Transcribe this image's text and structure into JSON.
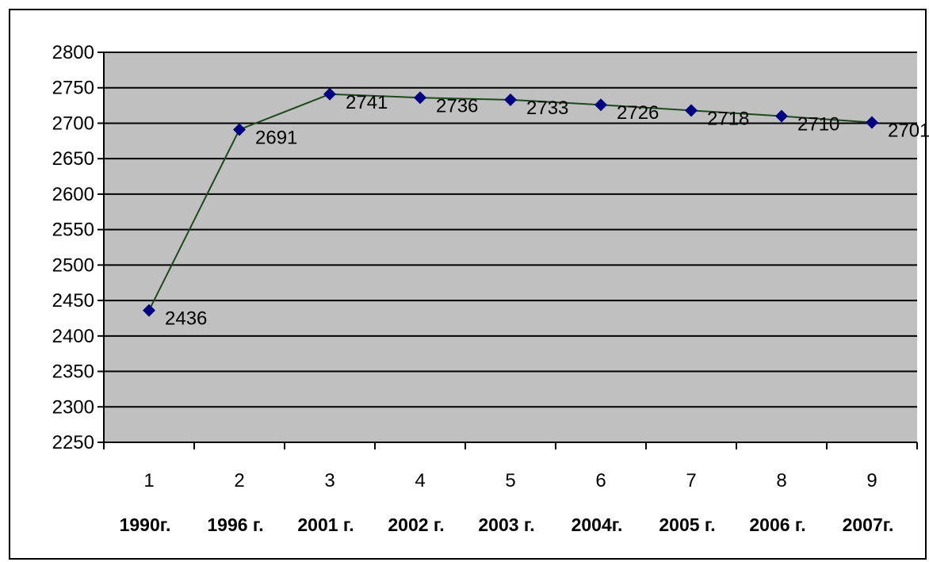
{
  "chart_data": {
    "type": "line",
    "categories": [
      "1",
      "2",
      "3",
      "4",
      "5",
      "6",
      "7",
      "8",
      "9"
    ],
    "year_labels": [
      "1990г.",
      "1996 г.",
      "2001 г.",
      "2002 г.",
      "2003 г.",
      "2004г.",
      "2005 г.",
      "2006 г.",
      "2007г."
    ],
    "series": [
      {
        "values": [
          2436,
          2691,
          2741,
          2736,
          2733,
          2726,
          2718,
          2710,
          2701
        ],
        "color": "#1c4a1c",
        "marker_color": "#000080"
      }
    ],
    "data_labels": [
      "2436",
      "2691",
      "2741",
      "2736",
      "2733",
      "2726",
      "2718",
      "2710",
      "2701"
    ],
    "ylim": [
      2250,
      2800
    ],
    "y_ticks": [
      "2250",
      "2300",
      "2350",
      "2400",
      "2450",
      "2500",
      "2550",
      "2600",
      "2650",
      "2700",
      "2750",
      "2800"
    ],
    "grid": true,
    "plot_background": "#c0c0c0",
    "title": "",
    "xlabel": "",
    "ylabel": ""
  }
}
